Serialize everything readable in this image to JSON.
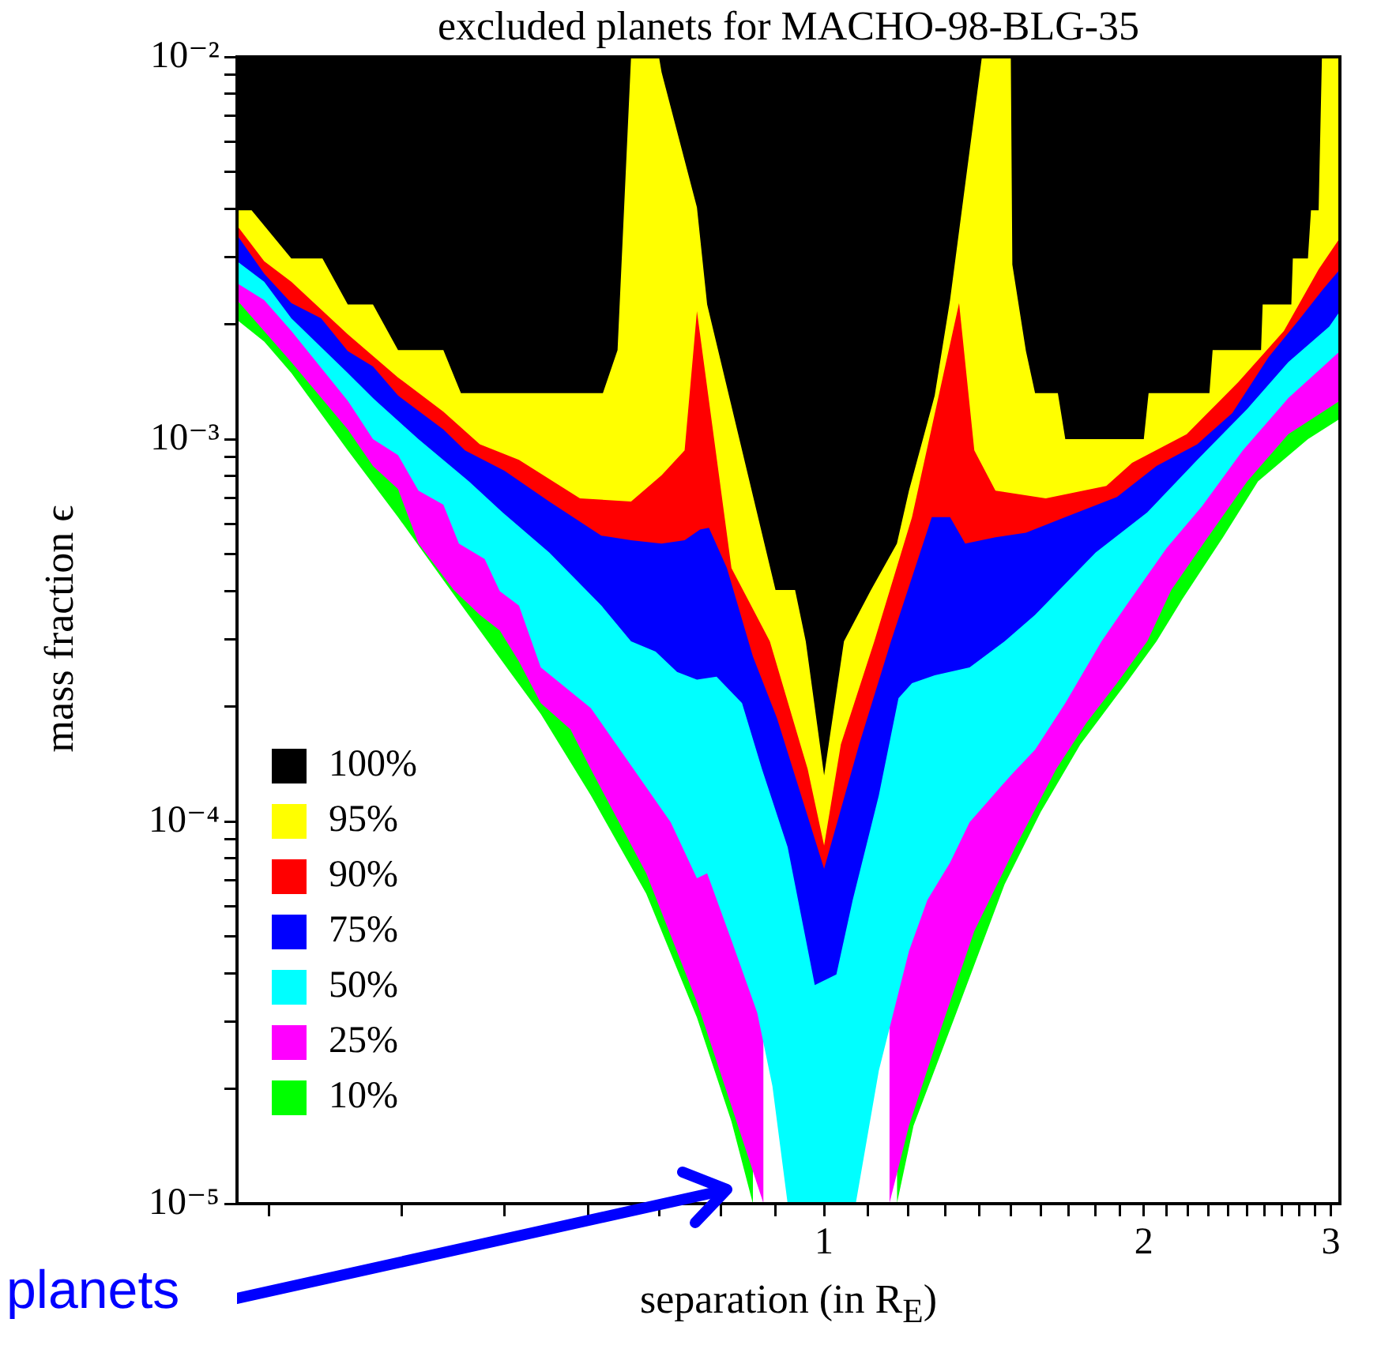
{
  "chart_data": {
    "type": "area",
    "title": "excluded planets for MACHO-98-BLG-35",
    "xlabel": "separation (in R$_{E}$)",
    "ylabel": "mass fraction ϵ",
    "log": "xy",
    "legend": "bottom left",
    "annotations": [
      "planets"
    ],
    "xlim": [
      0.28,
      3.06
    ],
    "xticks": [
      {
        "value": 0.3,
        "label": null
      },
      {
        "value": 0.4,
        "label": null
      },
      {
        "value": 0.5,
        "label": null
      },
      {
        "value": 0.6,
        "label": null
      },
      {
        "value": 0.7,
        "label": null
      },
      {
        "value": 0.8,
        "label": null
      },
      {
        "value": 0.9,
        "label": null
      },
      1,
      {
        "value": 1.1,
        "label": null
      },
      {
        "value": 1.2,
        "label": null
      },
      {
        "value": 1.3,
        "label": null
      },
      {
        "value": 1.4,
        "label": null
      },
      {
        "value": 1.5,
        "label": null
      },
      {
        "value": 1.6,
        "label": null
      },
      {
        "value": 1.7,
        "label": null
      },
      {
        "value": 1.8,
        "label": null
      },
      {
        "value": 1.9,
        "label": null
      },
      2,
      {
        "value": 2.1,
        "label": null
      },
      {
        "value": 2.2,
        "label": null
      },
      {
        "value": 2.3,
        "label": null
      },
      {
        "value": 2.4,
        "label": null
      },
      {
        "value": 2.5,
        "label": null
      },
      {
        "value": 2.6,
        "label": null
      },
      {
        "value": 2.7,
        "label": null
      },
      {
        "value": 2.8,
        "label": null
      },
      {
        "value": 2.9,
        "label": null
      },
      3
    ],
    "ylim": [
      1e-05,
      0.01
    ],
    "yticks": [
      {
        "value": 1e-05,
        "label": "10⁻⁵"
      },
      {
        "value": 2e-05,
        "label": null
      },
      {
        "value": 3e-05,
        "label": null
      },
      {
        "value": 4e-05,
        "label": null
      },
      {
        "value": 5e-05,
        "label": null
      },
      {
        "value": 6e-05,
        "label": null
      },
      {
        "value": 7e-05,
        "label": null
      },
      {
        "value": 8e-05,
        "label": null
      },
      {
        "value": 9e-05,
        "label": null
      },
      {
        "value": 0.0001,
        "label": "10⁻⁴"
      },
      {
        "value": 0.0002,
        "label": null
      },
      {
        "value": 0.0003,
        "label": null
      },
      {
        "value": 0.0004,
        "label": null
      },
      {
        "value": 0.0005,
        "label": null
      },
      {
        "value": 0.0006,
        "label": null
      },
      {
        "value": 0.0007,
        "label": null
      },
      {
        "value": 0.0008,
        "label": null
      },
      {
        "value": 0.0009,
        "label": null
      },
      {
        "value": 0.001,
        "label": "10⁻³"
      },
      {
        "value": 0.002,
        "label": null
      },
      {
        "value": 0.003,
        "label": null
      },
      {
        "value": 0.004,
        "label": null
      },
      {
        "value": 0.005,
        "label": null
      },
      {
        "value": 0.006,
        "label": null
      },
      {
        "value": 0.007,
        "label": null
      },
      {
        "value": 0.008,
        "label": null
      },
      {
        "value": 0.009,
        "label": null
      },
      {
        "value": 0.01,
        "label": "10⁻²"
      }
    ],
    "series": [
      {
        "name": "100%",
        "color": "#000000",
        "x": [
          0.28,
          0.28,
          0.289,
          0.315,
          0.337,
          0.356,
          0.376,
          0.397,
          0.438,
          0.455,
          0.619,
          0.639,
          0.658,
          0.699,
          0.703,
          0.759,
          0.776,
          0.9,
          0.939,
          0.961,
          1.0,
          1.044,
          1.107,
          1.171,
          1.202,
          1.271,
          1.314,
          1.408,
          1.499,
          1.504,
          1.549,
          1.58,
          1.66,
          1.687,
          2.0,
          2.021,
          2.306,
          2.322,
          2.579,
          2.588,
          2.754,
          2.763,
          2.855,
          2.874,
          2.922,
          2.943,
          3.06
        ],
        "values": [
          0.01,
          0.00397,
          0.00397,
          0.00297,
          0.00297,
          0.00225,
          0.00225,
          0.00171,
          0.00171,
          0.00132,
          0.00132,
          0.00171,
          0.01,
          0.01,
          0.00911,
          0.00404,
          0.00225,
          0.000403,
          0.000403,
          0.000296,
          0.000132,
          0.000296,
          0.000403,
          0.000533,
          0.000733,
          0.0013,
          0.00231,
          0.01,
          0.01,
          0.00286,
          0.0017,
          0.00132,
          0.00132,
          0.001,
          0.001,
          0.00132,
          0.00132,
          0.00171,
          0.00171,
          0.00225,
          0.00225,
          0.00297,
          0.00297,
          0.00397,
          0.00397,
          0.01,
          0.01
        ]
      },
      {
        "name": "95%",
        "color": "#ffff00",
        "x": [
          0.28,
          0.28,
          0.297,
          0.315,
          0.356,
          0.397,
          0.438,
          0.474,
          0.516,
          0.589,
          0.658,
          0.703,
          0.739,
          0.759,
          0.818,
          0.889,
          0.965,
          1.0,
          1.037,
          1.115,
          1.21,
          1.34,
          1.385,
          1.45,
          1.617,
          1.844,
          1.95,
          2.195,
          2.455,
          2.71,
          2.922,
          3.06,
          3.06
        ],
        "values": [
          0.01,
          0.00362,
          0.00292,
          0.00258,
          0.00188,
          0.00145,
          0.00118,
          0.00097,
          0.000883,
          0.0007,
          0.000687,
          0.000804,
          0.000934,
          0.00216,
          0.00046,
          0.000296,
          0.000137,
          8.65e-05,
          0.000159,
          0.000296,
          0.000625,
          0.00227,
          0.000934,
          0.000733,
          0.0007,
          0.000754,
          0.000867,
          0.00103,
          0.00141,
          0.00192,
          0.00278,
          0.00336,
          0.01
        ]
      },
      {
        "name": "90%",
        "color": "#ff0000",
        "x": [
          0.28,
          0.28,
          0.297,
          0.315,
          0.336,
          0.356,
          0.376,
          0.397,
          0.438,
          0.459,
          0.5,
          0.551,
          0.617,
          0.658,
          0.703,
          0.739,
          0.764,
          0.779,
          0.81,
          0.857,
          0.903,
          1.0,
          1.079,
          1.156,
          1.263,
          1.314,
          1.358,
          1.45,
          1.549,
          1.687,
          1.887,
          2.056,
          2.246,
          2.423,
          2.622,
          2.8,
          2.951,
          3.06,
          3.06
        ],
        "values": [
          0.01,
          0.00342,
          0.00271,
          0.00227,
          0.00207,
          0.0017,
          0.00155,
          0.0013,
          0.00106,
          0.000934,
          0.000827,
          0.000687,
          0.000559,
          0.000544,
          0.000533,
          0.000544,
          0.00058,
          0.000586,
          0.00046,
          0.00027,
          0.000186,
          7.52e-05,
          0.000159,
          0.000296,
          0.000625,
          0.000625,
          0.000533,
          0.000554,
          0.000569,
          0.000625,
          0.000706,
          0.000851,
          0.00097,
          0.00117,
          0.00164,
          0.00205,
          0.00247,
          0.00278,
          0.01
        ]
      },
      {
        "name": "75%",
        "color": "#0000ff",
        "x": [
          0.28,
          0.28,
          0.297,
          0.315,
          0.356,
          0.376,
          0.415,
          0.463,
          0.498,
          0.551,
          0.617,
          0.658,
          0.694,
          0.727,
          0.759,
          0.792,
          0.837,
          0.874,
          0.924,
          0.98,
          1.027,
          1.064,
          1.126,
          1.175,
          1.21,
          1.271,
          1.371,
          1.479,
          1.58,
          1.802,
          2.015,
          2.246,
          2.503,
          2.736,
          2.99,
          3.06,
          3.06
        ],
        "values": [
          0.01,
          0.00292,
          0.00258,
          0.00207,
          0.00149,
          0.00128,
          0.001,
          0.000775,
          0.000643,
          0.000505,
          0.000367,
          0.000296,
          0.000278,
          0.000246,
          0.000235,
          0.000239,
          0.000204,
          0.000137,
          8.57e-05,
          3.73e-05,
          3.98e-05,
          6.23e-05,
          0.000117,
          0.00021,
          0.00023,
          0.000241,
          0.000253,
          0.000296,
          0.000347,
          0.000505,
          0.000643,
          0.000883,
          0.0012,
          0.00159,
          0.00197,
          0.00216,
          0.01
        ]
      },
      {
        "name": "50%",
        "color": "#00ffff",
        "x": [
          0.28,
          0.28,
          0.297,
          0.315,
          0.356,
          0.376,
          0.397,
          0.415,
          0.438,
          0.453,
          0.479,
          0.495,
          0.516,
          0.541,
          0.603,
          0.658,
          0.717,
          0.759,
          0.776,
          0.818,
          0.865,
          0.894,
          0.924,
          1.071,
          1.126,
          1.202,
          1.251,
          1.314,
          1.371,
          1.499,
          1.58,
          1.687,
          1.825,
          1.925,
          2.102,
          2.27,
          2.479,
          2.736,
          2.951,
          3.06,
          3.06
        ],
        "values": [
          0.01,
          0.00256,
          0.00231,
          0.00192,
          0.00126,
          0.001,
          0.000908,
          0.000733,
          0.000674,
          0.000533,
          0.000486,
          0.0004,
          0.000367,
          0.000253,
          0.000198,
          0.00014,
          9.95e-05,
          7.1e-05,
          7.31e-05,
          4.89e-05,
          3.16e-05,
          2.03e-05,
          1e-05,
          1e-05,
          2.23e-05,
          4.58e-05,
          6.23e-05,
          7.8e-05,
          9.95e-05,
          0.000132,
          0.000154,
          0.000204,
          0.000296,
          0.000367,
          0.000519,
          0.000668,
          0.000934,
          0.00128,
          0.00155,
          0.0017,
          0.01
        ]
      },
      {
        "name": "25%",
        "color": "#ff00ff",
        "x": [
          0.28,
          0.28,
          0.315,
          0.356,
          0.376,
          0.397,
          0.415,
          0.448,
          0.474,
          0.495,
          0.516,
          0.541,
          0.577,
          0.603,
          0.68,
          0.759,
          0.818,
          0.877,
          0.877,
          1.0,
          1.152,
          1.152,
          1.202,
          1.284,
          1.385,
          1.514,
          1.654,
          1.766,
          1.887,
          2.015,
          2.123,
          2.298,
          2.503,
          2.736,
          3.06,
          3.06
        ],
        "values": [
          0.01,
          0.00231,
          0.00159,
          0.00106,
          0.000851,
          0.00074,
          0.000533,
          0.000403,
          0.000347,
          0.000316,
          0.000262,
          0.000204,
          0.000174,
          0.000137,
          7.31e-05,
          3.37e-05,
          1.8e-05,
          1e-05,
          0.01,
          null,
          0.01,
          1e-05,
          1.6e-05,
          2.79e-05,
          5.17e-05,
          8.57e-05,
          0.000137,
          0.000181,
          0.00023,
          0.000296,
          0.000403,
          0.000554,
          0.000775,
          0.00103,
          0.00126,
          0.01
        ]
      },
      {
        "name": "10%",
        "color": "#00ff00",
        "x": [
          0.28,
          0.28,
          0.297,
          0.315,
          0.356,
          0.397,
          0.448,
          0.506,
          0.541,
          0.603,
          0.68,
          0.759,
          0.818,
          0.857,
          0.857,
          1.0,
          1.171,
          1.171,
          1.214,
          1.327,
          1.479,
          1.6,
          1.743,
          1.925,
          2.056,
          2.174,
          2.375,
          2.562,
          2.855,
          3.06,
          3.06
        ],
        "values": [
          0.01,
          0.00205,
          0.0018,
          0.00149,
          0.000934,
          0.000625,
          0.000392,
          0.000246,
          0.000191,
          0.000117,
          6.47e-05,
          3.07e-05,
          1.64e-05,
          1e-05,
          0.01,
          null,
          0.01,
          1e-05,
          1.6e-05,
          3.07e-05,
          6.84e-05,
          0.000106,
          0.000159,
          0.00023,
          0.000296,
          0.000381,
          0.000554,
          0.000775,
          0.001,
          0.00113,
          0.01
        ]
      }
    ]
  }
}
